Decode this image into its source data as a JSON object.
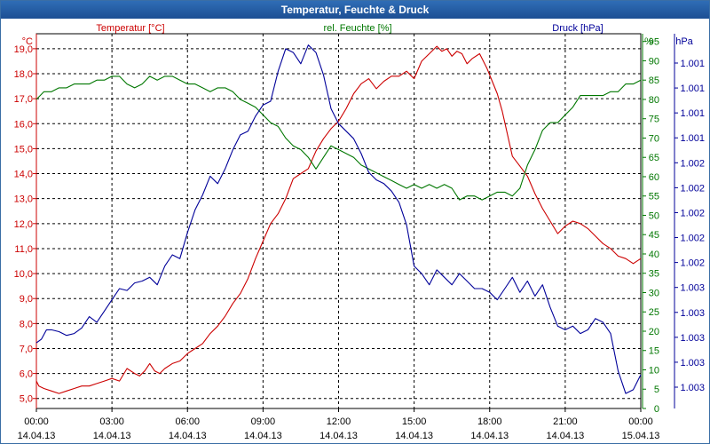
{
  "window": {
    "title": "Temperatur, Feuchte & Druck"
  },
  "chart_data": {
    "type": "line",
    "title": "Temperatur, Feuchte & Druck",
    "x_ticks": [
      {
        "time": "00:00",
        "date": "14.04.13"
      },
      {
        "time": "03:00",
        "date": "14.04.13"
      },
      {
        "time": "06:00",
        "date": "14.04.13"
      },
      {
        "time": "09:00",
        "date": "14.04.13"
      },
      {
        "time": "12:00",
        "date": "14.04.13"
      },
      {
        "time": "15:00",
        "date": "14.04.13"
      },
      {
        "time": "18:00",
        "date": "14.04.13"
      },
      {
        "time": "21:00",
        "date": "14.04.13"
      },
      {
        "time": "00:00",
        "date": "15.04.13"
      }
    ],
    "xlim_hours": [
      0,
      24
    ],
    "grid": true,
    "axes": {
      "temperature": {
        "label": "Temperatur [°C]",
        "unit": "°C",
        "color": "#cc0000",
        "side": "left",
        "ylim": [
          4.6,
          19.6
        ],
        "ticks": [
          "5,0",
          "6,0",
          "7,0",
          "8,0",
          "9,0",
          "10,0",
          "11,0",
          "12,0",
          "13,0",
          "14,0",
          "15,0",
          "16,0",
          "17,0",
          "18,0",
          "19,0"
        ]
      },
      "humidity": {
        "label": "rel. Feuchte [%]",
        "unit": "%",
        "color": "#007700",
        "side": "right",
        "ylim": [
          0,
          97
        ],
        "ticks": [
          "0",
          "5",
          "10",
          "15",
          "20",
          "25",
          "30",
          "35",
          "40",
          "45",
          "50",
          "55",
          "60",
          "65",
          "70",
          "75",
          "80",
          "85",
          "90",
          "95"
        ]
      },
      "pressure": {
        "label": "Druck [hPa]",
        "unit": "hPa",
        "color": "#000099",
        "side": "right",
        "ylim": [
          0,
          1
        ],
        "ticks": [
          "1.001",
          "1.001",
          "1.001",
          "1.001",
          "1.002",
          "1.002",
          "1.002",
          "1.002",
          "1.002",
          "1.003",
          "1.003",
          "1.003",
          "1.003",
          "1.003"
        ]
      }
    },
    "series": [
      {
        "name": "Temperatur [°C]",
        "axis": "temperature",
        "color": "#cc0000",
        "x": [
          0,
          0.1,
          0.3,
          0.6,
          0.9,
          1.2,
          1.5,
          1.8,
          2.1,
          2.4,
          2.7,
          3.0,
          3.3,
          3.6,
          3.9,
          4.1,
          4.3,
          4.5,
          4.7,
          4.9,
          5.1,
          5.4,
          5.7,
          6.0,
          6.3,
          6.6,
          6.9,
          7.2,
          7.5,
          7.8,
          8.1,
          8.4,
          8.7,
          9.0,
          9.3,
          9.6,
          9.9,
          10.2,
          10.5,
          10.8,
          11.1,
          11.4,
          11.7,
          12.0,
          12.3,
          12.6,
          12.9,
          13.2,
          13.5,
          13.8,
          14.1,
          14.4,
          14.7,
          15.0,
          15.3,
          15.6,
          15.9,
          16.1,
          16.3,
          16.5,
          16.7,
          16.9,
          17.1,
          17.3,
          17.6,
          17.9,
          18.1,
          18.3,
          18.5,
          18.7,
          18.9,
          19.2,
          19.5,
          19.8,
          20.1,
          20.4,
          20.7,
          21.0,
          21.3,
          21.6,
          21.9,
          22.2,
          22.5,
          22.8,
          23.1,
          23.4,
          23.7,
          24.0
        ],
        "values": [
          5.7,
          5.5,
          5.4,
          5.3,
          5.2,
          5.3,
          5.4,
          5.5,
          5.5,
          5.6,
          5.7,
          5.8,
          5.7,
          6.2,
          6.0,
          5.9,
          6.1,
          6.4,
          6.1,
          6.0,
          6.2,
          6.4,
          6.5,
          6.8,
          7.0,
          7.2,
          7.6,
          7.9,
          8.3,
          8.8,
          9.2,
          9.8,
          10.6,
          11.3,
          12.0,
          12.4,
          13.0,
          13.8,
          14.0,
          14.2,
          14.9,
          15.4,
          15.8,
          16.1,
          16.6,
          17.2,
          17.6,
          17.8,
          17.4,
          17.7,
          17.9,
          17.9,
          18.1,
          17.8,
          18.5,
          18.8,
          19.1,
          18.9,
          19.0,
          18.7,
          18.9,
          18.8,
          18.4,
          18.6,
          18.8,
          18.2,
          17.7,
          17.2,
          16.5,
          15.6,
          14.7,
          14.3,
          13.9,
          13.2,
          12.6,
          12.1,
          11.6,
          11.9,
          12.1,
          12.0,
          11.8,
          11.5,
          11.2,
          11.0,
          10.7,
          10.6,
          10.4,
          10.6
        ]
      },
      {
        "name": "rel. Feuchte [%]",
        "axis": "humidity",
        "color": "#007700",
        "x": [
          0,
          0.3,
          0.6,
          0.9,
          1.2,
          1.5,
          1.8,
          2.1,
          2.4,
          2.7,
          3.0,
          3.3,
          3.6,
          3.9,
          4.2,
          4.5,
          4.8,
          5.1,
          5.4,
          5.7,
          6.0,
          6.3,
          6.6,
          6.9,
          7.2,
          7.5,
          7.8,
          8.1,
          8.4,
          8.7,
          9.0,
          9.3,
          9.6,
          9.9,
          10.2,
          10.5,
          10.8,
          11.1,
          11.4,
          11.7,
          12.0,
          12.3,
          12.6,
          12.9,
          13.2,
          13.5,
          13.8,
          14.1,
          14.4,
          14.7,
          15.0,
          15.3,
          15.6,
          15.9,
          16.2,
          16.5,
          16.8,
          17.1,
          17.4,
          17.7,
          18.0,
          18.3,
          18.6,
          18.9,
          19.2,
          19.5,
          19.8,
          20.1,
          20.4,
          20.7,
          21.0,
          21.3,
          21.6,
          21.9,
          22.2,
          22.5,
          22.8,
          23.1,
          23.4,
          23.7,
          24.0
        ],
        "values": [
          80,
          82,
          82,
          83,
          83,
          84,
          84,
          84,
          85,
          85,
          86,
          86,
          84,
          83,
          84,
          86,
          85,
          86,
          86,
          85,
          84,
          84,
          83,
          82,
          83,
          83,
          82,
          80,
          79,
          78,
          76,
          74,
          73,
          70,
          68,
          67,
          65,
          62,
          65,
          68,
          67,
          66,
          65,
          63,
          62,
          61,
          60,
          59,
          58,
          57,
          58,
          57,
          58,
          57,
          58,
          57,
          54,
          55,
          55,
          54,
          55,
          56,
          56,
          55,
          57,
          63,
          67,
          72,
          74,
          74,
          76,
          78,
          81,
          81,
          81,
          81,
          82,
          82,
          84,
          84,
          85
        ]
      },
      {
        "name": "Druck [hPa]",
        "axis": "pressure",
        "color": "#000099",
        "x": [
          0,
          0.2,
          0.4,
          0.6,
          0.9,
          1.2,
          1.5,
          1.8,
          2.1,
          2.4,
          2.7,
          3.0,
          3.3,
          3.6,
          3.9,
          4.2,
          4.5,
          4.8,
          5.1,
          5.4,
          5.7,
          6.0,
          6.3,
          6.6,
          6.9,
          7.2,
          7.5,
          7.8,
          8.1,
          8.4,
          8.7,
          9.0,
          9.3,
          9.6,
          9.9,
          10.2,
          10.5,
          10.8,
          11.1,
          11.4,
          11.7,
          12.0,
          12.3,
          12.6,
          12.9,
          13.2,
          13.5,
          13.8,
          14.1,
          14.4,
          14.7,
          15.0,
          15.3,
          15.6,
          15.9,
          16.2,
          16.5,
          16.8,
          17.1,
          17.4,
          17.7,
          18.0,
          18.3,
          18.6,
          18.9,
          19.2,
          19.5,
          19.8,
          20.1,
          20.4,
          20.7,
          21.0,
          21.3,
          21.6,
          21.9,
          22.2,
          22.5,
          22.8,
          23.1,
          23.4,
          23.7,
          24.0
        ],
        "values": [
          0.175,
          0.185,
          0.21,
          0.21,
          0.205,
          0.195,
          0.2,
          0.215,
          0.245,
          0.23,
          0.26,
          0.29,
          0.32,
          0.315,
          0.335,
          0.34,
          0.35,
          0.33,
          0.38,
          0.41,
          0.4,
          0.47,
          0.53,
          0.57,
          0.62,
          0.6,
          0.64,
          0.69,
          0.73,
          0.74,
          0.78,
          0.81,
          0.82,
          0.9,
          0.96,
          0.95,
          0.92,
          0.97,
          0.95,
          0.89,
          0.8,
          0.76,
          0.74,
          0.72,
          0.68,
          0.63,
          0.61,
          0.6,
          0.58,
          0.55,
          0.49,
          0.38,
          0.36,
          0.33,
          0.37,
          0.35,
          0.33,
          0.36,
          0.34,
          0.32,
          0.32,
          0.31,
          0.29,
          0.32,
          0.35,
          0.31,
          0.34,
          0.3,
          0.33,
          0.27,
          0.22,
          0.21,
          0.22,
          0.2,
          0.21,
          0.24,
          0.23,
          0.2,
          0.1,
          0.04,
          0.05,
          0.09
        ]
      }
    ]
  }
}
